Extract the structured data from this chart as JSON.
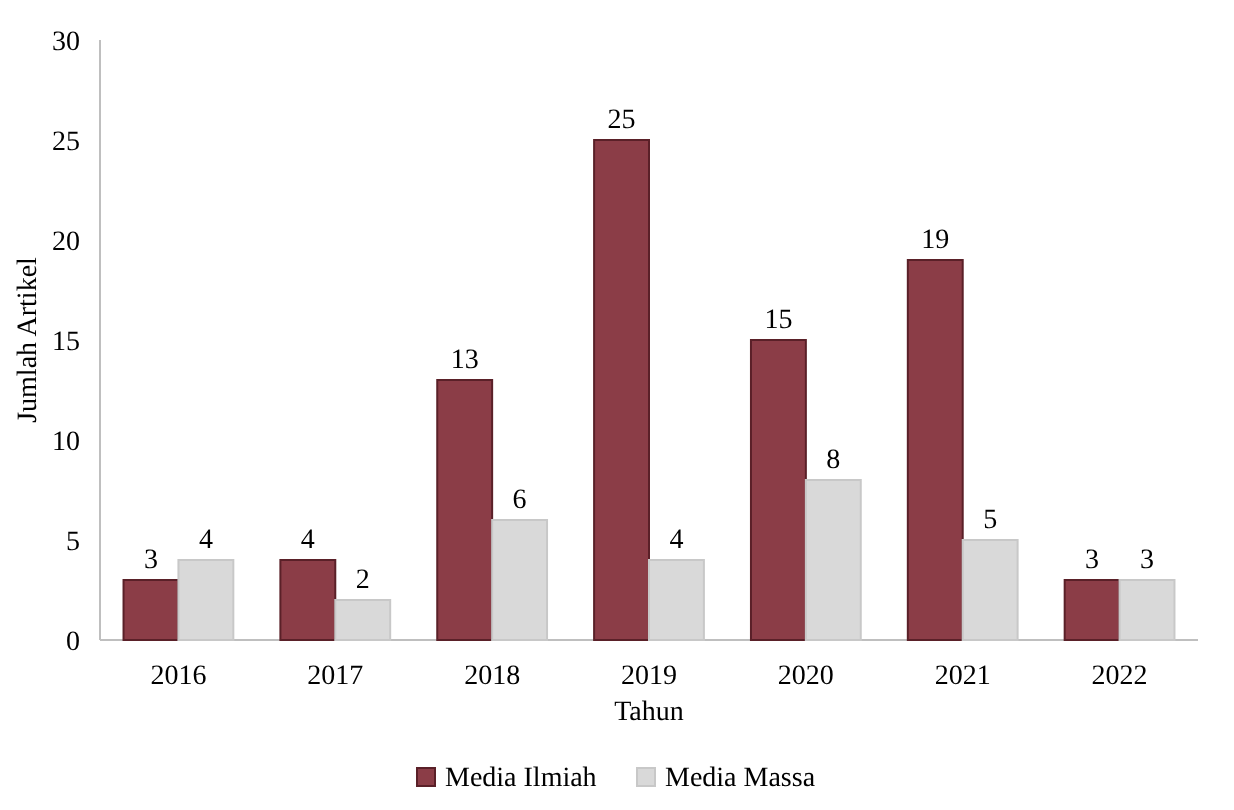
{
  "chart_data": {
    "type": "bar",
    "categories": [
      "2016",
      "2017",
      "2018",
      "2019",
      "2020",
      "2021",
      "2022"
    ],
    "series": [
      {
        "name": "Media Ilmiah",
        "color": "#8b3d47",
        "values": [
          3,
          4,
          13,
          25,
          15,
          19,
          3
        ]
      },
      {
        "name": "Media Massa",
        "color": "#d9d9d9",
        "values": [
          4,
          2,
          6,
          4,
          8,
          5,
          3
        ]
      }
    ],
    "ylim": [
      0,
      30
    ],
    "yticks": [
      0,
      5,
      10,
      15,
      20,
      25,
      30
    ],
    "xlabel": "Tahun",
    "ylabel": "Jumlah Artikel",
    "data_labels": true,
    "legend": "bottom",
    "grid": false
  }
}
